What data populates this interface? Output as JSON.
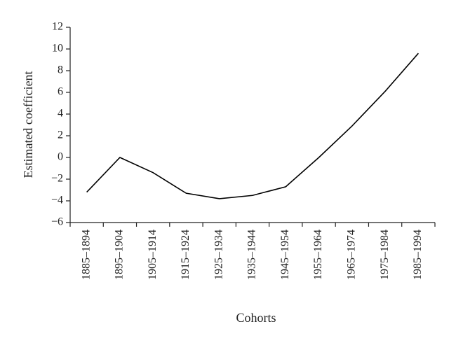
{
  "chart_data": {
    "type": "line",
    "x_label": "Cohorts",
    "y_label": "Estimated coefficient",
    "categories": [
      "1885–1894",
      "1895–1904",
      "1905–1914",
      "1915–1924",
      "1925–1934",
      "1935–1944",
      "1945–1954",
      "1955–1964",
      "1965–1974",
      "1975–1984",
      "1985–1994"
    ],
    "values": [
      -3.2,
      0,
      -1.4,
      -3.3,
      -3.8,
      -3.5,
      -2.7,
      0,
      2.9,
      6.1,
      9.6
    ],
    "color": "#000000",
    "ylim": [
      -6,
      12
    ],
    "yticks": [
      {
        "value": -6,
        "label": "−6"
      },
      {
        "value": -4,
        "label": "−4"
      },
      {
        "value": -2,
        "label": "−2"
      },
      0,
      2,
      4,
      6,
      8,
      10,
      12
    ]
  }
}
